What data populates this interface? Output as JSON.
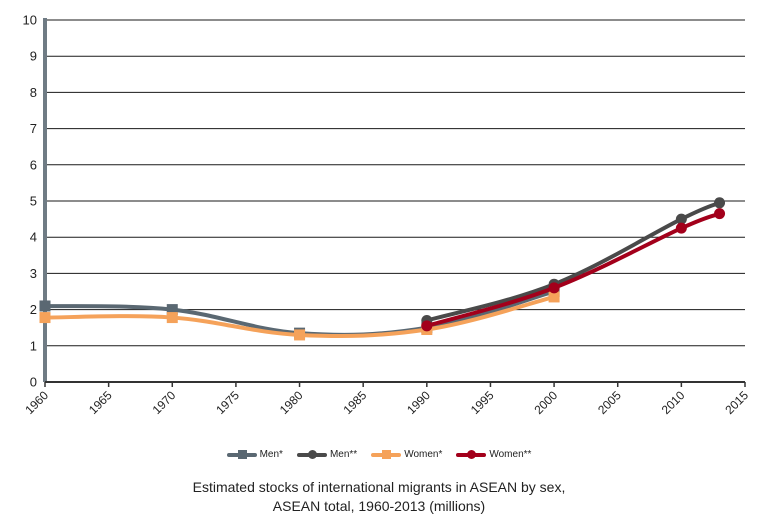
{
  "chart_data": {
    "type": "line",
    "title": "Estimated stocks of international migrants in ASEAN by sex,",
    "subtitle": "ASEAN total, 1960-2013 (millions)",
    "xlabel": "",
    "ylabel": "",
    "xlim": [
      1960,
      2015
    ],
    "ylim": [
      0,
      10
    ],
    "x_ticks": [
      "1960",
      "1965",
      "1970",
      "1975",
      "1980",
      "1985",
      "1990",
      "1995",
      "2000",
      "2005",
      "2010",
      "2015"
    ],
    "y_ticks": [
      "0",
      "1",
      "2",
      "3",
      "4",
      "5",
      "6",
      "7",
      "8",
      "9",
      "10"
    ],
    "grid": true,
    "legend_position": "bottom",
    "series": [
      {
        "name": "Men*",
        "color": "#5a6872",
        "marker": "square",
        "x": [
          1960,
          1970,
          1980,
          1990,
          2000
        ],
        "y": [
          2.1,
          2.0,
          1.35,
          1.5,
          2.5
        ]
      },
      {
        "name": "Men**",
        "color": "#4a4a4a",
        "marker": "circle",
        "x": [
          1990,
          2000,
          2010,
          2013
        ],
        "y": [
          1.7,
          2.7,
          4.5,
          4.95
        ]
      },
      {
        "name": "Women*",
        "color": "#f5a25a",
        "marker": "square",
        "x": [
          1960,
          1970,
          1980,
          1990,
          2000
        ],
        "y": [
          1.78,
          1.78,
          1.3,
          1.45,
          2.35
        ]
      },
      {
        "name": "Women**",
        "color": "#a3001b",
        "marker": "circle",
        "x": [
          1990,
          2000,
          2010,
          2013
        ],
        "y": [
          1.55,
          2.6,
          4.25,
          4.65
        ]
      }
    ]
  }
}
